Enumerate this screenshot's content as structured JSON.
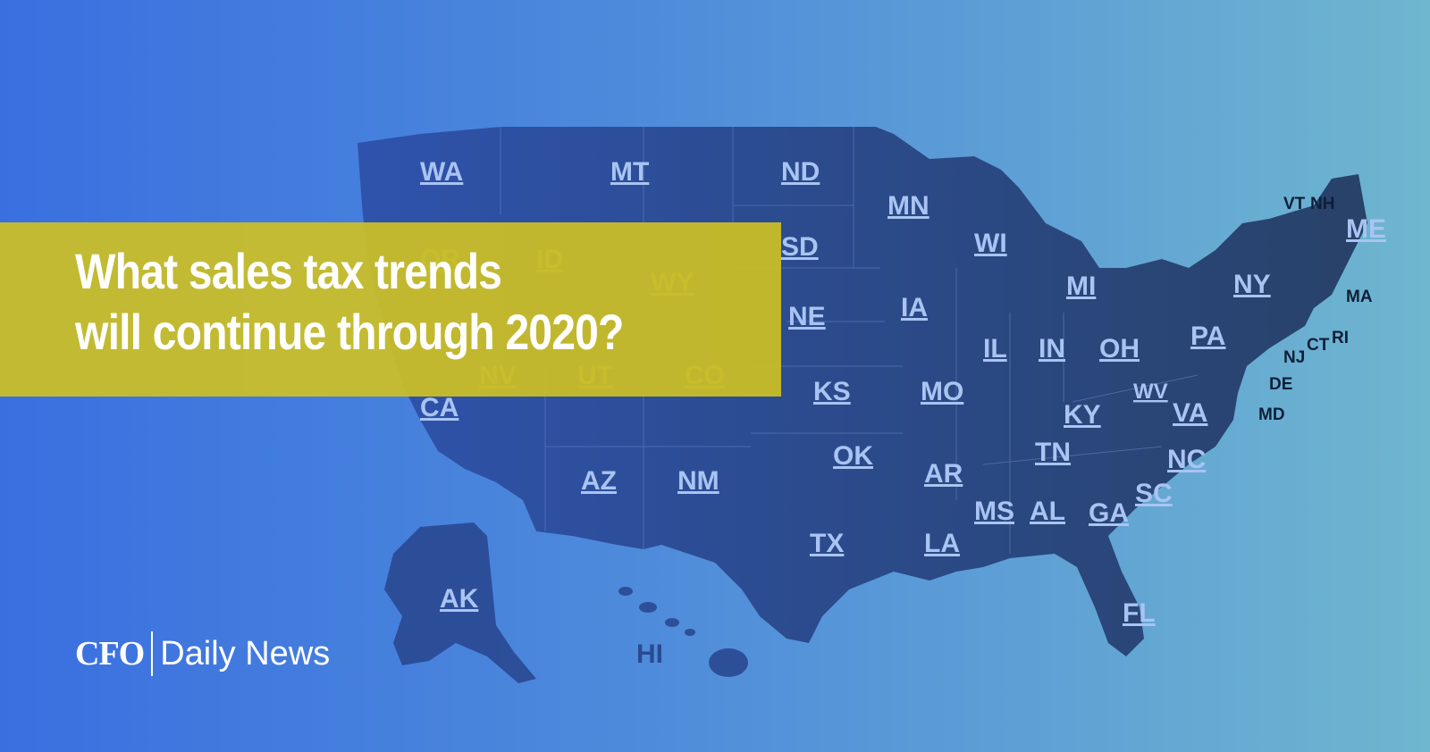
{
  "headline": {
    "line1": "What sales tax trends",
    "line2": "will continue through 2020?"
  },
  "logo": {
    "brand": "CFO",
    "name": "Daily News"
  },
  "colors": {
    "map_fill": "#2a4a92",
    "banner": "#ccc026",
    "label": "#a9c4f2",
    "background_left": "#3a6fe0",
    "background_right": "#6fb6cf"
  },
  "states": {
    "WA": "WA",
    "MT": "MT",
    "ND": "ND",
    "MN": "MN",
    "OR": "OR",
    "ID": "ID",
    "WY": "WY",
    "SD": "SD",
    "WI": "WI",
    "MI": "MI",
    "NY": "NY",
    "ME": "ME",
    "VT": "VT",
    "NH": "NH",
    "MA": "MA",
    "RI": "RI",
    "CT": "CT",
    "NJ": "NJ",
    "DE": "DE",
    "MD": "MD",
    "PA": "PA",
    "NE": "NE",
    "IA": "IA",
    "IL": "IL",
    "IN": "IN",
    "OH": "OH",
    "NV": "NV",
    "UT": "UT",
    "CO": "CO",
    "CA": "CA",
    "KS": "KS",
    "MO": "MO",
    "KY": "KY",
    "WV": "WV",
    "VA": "VA",
    "TN": "TN",
    "NC": "NC",
    "AZ": "AZ",
    "NM": "NM",
    "OK": "OK",
    "AR": "AR",
    "SC": "SC",
    "MS": "MS",
    "AL": "AL",
    "GA": "GA",
    "TX": "TX",
    "LA": "LA",
    "FL": "FL",
    "AK": "AK",
    "HI": "HI"
  }
}
